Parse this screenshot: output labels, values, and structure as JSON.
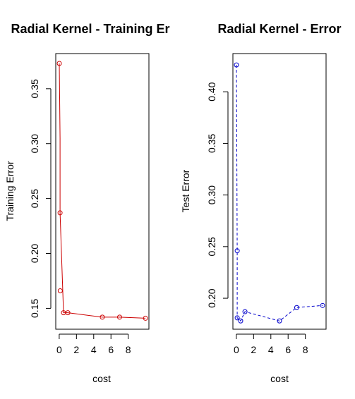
{
  "chart_data": [
    {
      "type": "line",
      "title": "Radial Kernel - Training Er",
      "xlabel": "cost",
      "ylabel": "Training Error",
      "xlim": [
        -0.4,
        10.4
      ],
      "ylim": [
        0.131,
        0.382
      ],
      "xticks": [
        "0",
        "2",
        "4",
        "6",
        "8"
      ],
      "yticks": [
        "0.15",
        "0.20",
        "0.25",
        "0.30",
        "0.35"
      ],
      "color": "#cc0000",
      "line_style": "solid",
      "x": [
        0.01,
        0.1,
        0.1,
        0.5,
        1,
        5,
        7,
        10
      ],
      "y": [
        0.373,
        0.305,
        0.237,
        0.146,
        0.146,
        0.142,
        0.142,
        0.141
      ],
      "x_markers": [
        0.01,
        0.1,
        0.12,
        0.5,
        1,
        5,
        7,
        10
      ],
      "y_markers": [
        0.373,
        0.237,
        0.166,
        0.146,
        0.146,
        0.142,
        0.142,
        0.141
      ]
    },
    {
      "type": "line",
      "title": "Radial Kernel - Error",
      "xlabel": "cost",
      "ylabel": "Test Error",
      "xlim": [
        -0.4,
        10.4
      ],
      "ylim": [
        0.17,
        0.437
      ],
      "xticks": [
        "0",
        "2",
        "4",
        "6",
        "8"
      ],
      "yticks": [
        "0.20",
        "0.25",
        "0.30",
        "0.35",
        "0.40"
      ],
      "color": "#0000cc",
      "line_style": "dashed",
      "x": [
        0.01,
        0.1,
        0.1,
        0.5,
        1,
        5,
        7,
        10
      ],
      "y": [
        0.426,
        0.246,
        0.181,
        0.178,
        0.187,
        0.178,
        0.191,
        0.193
      ],
      "x_markers": [
        0.01,
        0.1,
        0.1,
        0.5,
        1,
        5,
        7,
        10
      ],
      "y_markers": [
        0.426,
        0.246,
        0.181,
        0.178,
        0.187,
        0.178,
        0.191,
        0.193
      ]
    }
  ]
}
